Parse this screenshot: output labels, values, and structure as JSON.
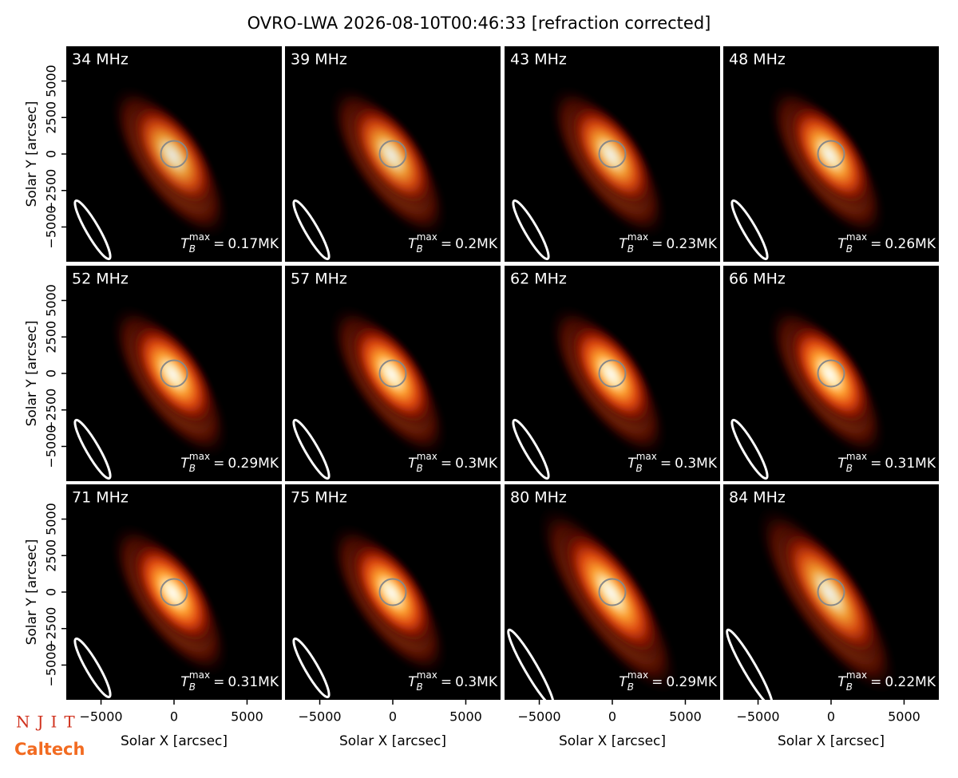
{
  "chart_data": {
    "type": "image-grid",
    "title": "OVRO-LWA 2026-08-10T00:46:33 [refraction corrected]",
    "xlabel": "Solar X [arcsec]",
    "ylabel": "Solar Y [arcsec]",
    "xlim": [
      -7380,
      7380
    ],
    "ylim": [
      -7380,
      7380
    ],
    "xticks": [
      {
        "value": -5000,
        "label": "−5000"
      },
      0,
      5000
    ],
    "yticks": [
      {
        "value": -5000,
        "label": "−5000"
      },
      {
        "value": -2500,
        "label": "−2500"
      },
      0,
      2500,
      5000
    ],
    "tmax_symbol": {
      "base": "T",
      "sub": "B",
      "sup": "max",
      "eq": "="
    },
    "categories": [
      "34 MHz",
      "39 MHz",
      "43 MHz",
      "48 MHz",
      "52 MHz",
      "57 MHz",
      "62 MHz",
      "66 MHz",
      "71 MHz",
      "75 MHz",
      "80 MHz",
      "84 MHz"
    ],
    "values": [
      0.17,
      0.2,
      0.23,
      0.26,
      0.29,
      0.3,
      0.3,
      0.31,
      0.31,
      0.3,
      0.29,
      0.22
    ],
    "value_labels": [
      "0.17MK",
      "0.2MK",
      "0.23MK",
      "0.26MK",
      "0.29MK",
      "0.3MK",
      "0.3MK",
      "0.31MK",
      "0.31MK",
      "0.3MK",
      "0.29MK",
      "0.22MK"
    ]
  },
  "logos": {
    "njit": "NJIT",
    "caltech": "Caltech"
  }
}
